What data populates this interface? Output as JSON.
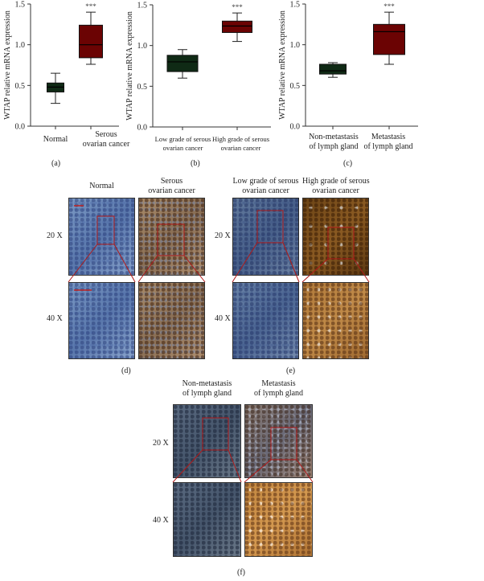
{
  "colors": {
    "low": "#0f2a15",
    "high": "#6b0303",
    "axis": "#333333"
  },
  "chart_data": [
    {
      "type": "box",
      "panel": "(a)",
      "ylabel": "WTAP relative mRNA expression",
      "ylim": [
        0,
        1.5
      ],
      "yticks": [
        "0.0",
        "0.5",
        "1.0",
        "1.5"
      ],
      "categories": [
        "Normal",
        "Serous ovarian cancer"
      ],
      "boxes": [
        {
          "min": 0.28,
          "q1": 0.42,
          "median": 0.48,
          "q3": 0.53,
          "max": 0.65
        },
        {
          "min": 0.76,
          "q1": 0.84,
          "median": 1.0,
          "q3": 1.24,
          "max": 1.4
        }
      ],
      "annotation": "***"
    },
    {
      "type": "box",
      "panel": "(b)",
      "ylabel": "WTAP relative mRNA expression",
      "ylim": [
        0,
        1.5
      ],
      "yticks": [
        "0.0",
        "0.5",
        "1.0",
        "1.5"
      ],
      "categories": [
        "Low grade of serous ovarian cancer",
        "High grade of serous ovarian cancer"
      ],
      "boxes": [
        {
          "min": 0.6,
          "q1": 0.68,
          "median": 0.8,
          "q3": 0.88,
          "max": 0.95
        },
        {
          "min": 1.05,
          "q1": 1.16,
          "median": 1.24,
          "q3": 1.3,
          "max": 1.4
        }
      ],
      "annotation": "***"
    },
    {
      "type": "box",
      "panel": "(c)",
      "ylabel": "WTAP relative mRNA expression",
      "ylim": [
        0,
        1.5
      ],
      "yticks": [
        "0.0",
        "0.5",
        "1.0",
        "1.5"
      ],
      "categories": [
        "Non-metastasis of lymph gland",
        "Metastasis of lymph gland"
      ],
      "boxes": [
        {
          "min": 0.6,
          "q1": 0.64,
          "median": 0.68,
          "q3": 0.76,
          "max": 0.78
        },
        {
          "min": 0.76,
          "q1": 0.88,
          "median": 1.16,
          "q3": 1.25,
          "max": 1.4
        }
      ],
      "annotation": "***"
    }
  ],
  "cat_labels": {
    "a": [
      [
        "Normal",
        ""
      ],
      [
        "Serous",
        "ovarian cancer"
      ]
    ],
    "b": [
      [
        "Low grade of serous",
        "ovarian cancer"
      ],
      [
        "High grade of serous",
        "ovarian cancer"
      ]
    ],
    "c": [
      [
        "Non-metastasis",
        "of lymph gland"
      ],
      [
        "Metastasis",
        "of lymph gland"
      ]
    ]
  },
  "panels": {
    "a": "(a)",
    "b": "(b)",
    "c": "(c)",
    "d": "(d)",
    "e": "(e)",
    "f": "(f)"
  },
  "magnification": {
    "m20": "20 X",
    "m40": "40 X"
  }
}
